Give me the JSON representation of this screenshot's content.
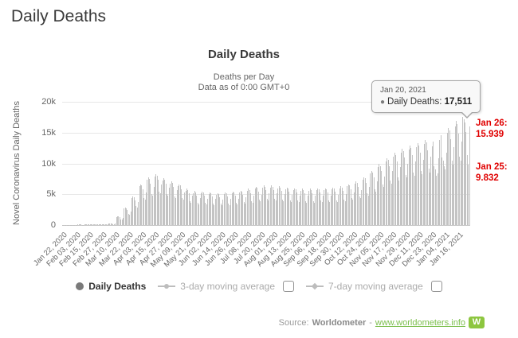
{
  "page": {
    "title": "Daily Deaths"
  },
  "chart": {
    "title": "Daily Deaths",
    "subtitle1": "Deaths per Day",
    "subtitle2": "Data as of 0:00 GMT+0",
    "y_axis_title": "Novel Coronavirus Daily Deaths"
  },
  "tooltip": {
    "date": "Jan 20, 2021",
    "dot": "●",
    "series_label": "Daily Deaths:",
    "value": "17,511"
  },
  "annotations": [
    {
      "label": "Jan 26:",
      "value": "15.939"
    },
    {
      "label": "Jan 25:",
      "value": "9.832"
    }
  ],
  "legend": {
    "items": [
      {
        "label": "Daily Deaths",
        "active": true
      },
      {
        "label": "3-day moving average",
        "active": false,
        "checkbox": true
      },
      {
        "label": "7-day moving average",
        "active": false,
        "checkbox": true
      }
    ]
  },
  "source": {
    "prefix": "Source:",
    "name": "Worldometer",
    "separator": "-",
    "link": "www.worldometers.info",
    "logo_letter": "W",
    "logo_color": "#8dc63f"
  },
  "chart_data": {
    "type": "bar",
    "title": "Daily Deaths",
    "xlabel": "",
    "ylabel": "Novel Coronavirus Daily Deaths",
    "ylim": [
      0,
      20000
    ],
    "grid": true,
    "bar_color": "#c3c3c3",
    "annotation_color": "#e00000",
    "x_start": "Jan 22, 2020",
    "x_end": "Jan 26, 2021",
    "y_ticks": [
      {
        "label": "0",
        "value": 0
      },
      {
        "label": "5k",
        "value": 5000
      },
      {
        "label": "10k",
        "value": 10000
      },
      {
        "label": "15k",
        "value": 15000
      },
      {
        "label": "20k",
        "value": 20000
      }
    ],
    "x_ticks": [
      {
        "label": "Jan 22, 2020",
        "day": 0
      },
      {
        "label": "Feb 03, 2020",
        "day": 12
      },
      {
        "label": "Feb 15, 2020",
        "day": 24
      },
      {
        "label": "Feb 27, 2020",
        "day": 36
      },
      {
        "label": "Mar 10, 2020",
        "day": 48
      },
      {
        "label": "Mar 22, 2020",
        "day": 60
      },
      {
        "label": "Apr 03, 2020",
        "day": 72
      },
      {
        "label": "Apr 15, 2020",
        "day": 84
      },
      {
        "label": "Apr 27, 2020",
        "day": 96
      },
      {
        "label": "May 09, 2020",
        "day": 108
      },
      {
        "label": "May 21, 2020",
        "day": 120
      },
      {
        "label": "Jun 02, 2020",
        "day": 132
      },
      {
        "label": "Jun 14, 2020",
        "day": 144
      },
      {
        "label": "Jun 26, 2020",
        "day": 156
      },
      {
        "label": "Jul 08, 2020",
        "day": 168
      },
      {
        "label": "Jul 20, 2020",
        "day": 180
      },
      {
        "label": "Aug 01, 2020",
        "day": 192
      },
      {
        "label": "Aug 13, 2020",
        "day": 204
      },
      {
        "label": "Aug 25, 2020",
        "day": 216
      },
      {
        "label": "Sep 06, 2020",
        "day": 228
      },
      {
        "label": "Sep 18, 2020",
        "day": 240
      },
      {
        "label": "Sep 30, 2020",
        "day": 252
      },
      {
        "label": "Oct 12, 2020",
        "day": 264
      },
      {
        "label": "Oct 24, 2020",
        "day": 276
      },
      {
        "label": "Nov 05, 2020",
        "day": 288
      },
      {
        "label": "Nov 17, 2020",
        "day": 300
      },
      {
        "label": "Nov 29, 2020",
        "day": 312
      },
      {
        "label": "Dec 11, 2020",
        "day": 324
      },
      {
        "label": "Dec 23, 2020",
        "day": 336
      },
      {
        "label": "Jan 04, 2021",
        "day": 348
      },
      {
        "label": "Jan 16, 2021",
        "day": 360
      }
    ],
    "highlight": {
      "date": "Jan 20, 2021",
      "value": 17511,
      "day": 364
    },
    "last_points": [
      {
        "date": "Jan 25, 2021",
        "value": 9832
      },
      {
        "date": "Jan 26, 2021",
        "value": 15939
      }
    ],
    "values": [
      19,
      20,
      19,
      18,
      13,
      12,
      16,
      57,
      60,
      58,
      53,
      40,
      37,
      48,
      90,
      95,
      92,
      84,
      63,
      59,
      76,
      114,
      120,
      116,
      106,
      79,
      74,
      96,
      105,
      110,
      107,
      97,
      73,
      68,
      88,
      124,
      130,
      126,
      114,
      86,
      81,
      104,
      266,
      280,
      272,
      246,
      185,
      174,
      224,
      1330,
      1400,
      1358,
      1232,
      924,
      868,
      1120,
      2660,
      2800,
      2716,
      2464,
      1848,
      1736,
      2240,
      4370,
      4600,
      4462,
      4048,
      3036,
      2852,
      3680,
      6270,
      6600,
      6402,
      5808,
      4356,
      4092,
      5280,
      7315,
      7700,
      7469,
      6776,
      5082,
      4774,
      6160,
      7885,
      8300,
      8051,
      7304,
      5478,
      5146,
      6640,
      7220,
      7600,
      7372,
      6688,
      5016,
      4712,
      6080,
      6745,
      7100,
      6887,
      6248,
      4686,
      4402,
      5680,
      6270,
      6600,
      6402,
      5808,
      4356,
      4092,
      5280,
      5605,
      5900,
      5723,
      5192,
      3894,
      3658,
      4720,
      5225,
      5500,
      5335,
      4840,
      3630,
      3410,
      4400,
      5130,
      5400,
      5238,
      4752,
      3564,
      3348,
      4320,
      5035,
      5300,
      5141,
      4664,
      3498,
      3286,
      4240,
      4940,
      5200,
      5044,
      4576,
      3432,
      3224,
      4160,
      5035,
      5300,
      5141,
      4664,
      3498,
      3286,
      4240,
      5130,
      5400,
      5238,
      4752,
      3564,
      3348,
      4320,
      5320,
      5600,
      5432,
      4928,
      3696,
      3472,
      4480,
      5605,
      5900,
      5723,
      5192,
      3894,
      3658,
      4720,
      5890,
      6200,
      6014,
      5456,
      4092,
      3844,
      4960,
      6080,
      6400,
      6208,
      5632,
      4224,
      3968,
      5120,
      6080,
      6400,
      6208,
      5632,
      4224,
      3968,
      5120,
      5985,
      6300,
      6111,
      5544,
      4158,
      3906,
      5040,
      5795,
      6100,
      5917,
      5368,
      4026,
      3782,
      4880,
      5700,
      6000,
      5820,
      5280,
      3960,
      3720,
      4800,
      5605,
      5900,
      5723,
      5192,
      3894,
      3658,
      4720,
      5605,
      5900,
      5723,
      5192,
      3894,
      3658,
      4720,
      5700,
      6000,
      5820,
      5280,
      3960,
      3720,
      4800,
      5700,
      6000,
      5820,
      5280,
      3960,
      3720,
      4800,
      5795,
      6100,
      5917,
      5368,
      4026,
      3782,
      4880,
      5985,
      6300,
      6111,
      5544,
      4158,
      3906,
      5040,
      6270,
      6600,
      6402,
      5808,
      4356,
      4092,
      5280,
      6745,
      7100,
      6887,
      6248,
      4686,
      4402,
      5680,
      7410,
      7800,
      7566,
      6864,
      5148,
      4836,
      6240,
      8360,
      8800,
      8536,
      7744,
      5808,
      5456,
      7040,
      9405,
      9900,
      9603,
      8712,
      6534,
      6138,
      7920,
      10355,
      10900,
      10573,
      9592,
      7194,
      6758,
      8720,
      11115,
      11700,
      11349,
      10296,
      7722,
      7254,
      9360,
      11780,
      12400,
      12028,
      10912,
      8184,
      7688,
      9920,
      12255,
      12900,
      12513,
      11352,
      8514,
      7998,
      10320,
      12635,
      13300,
      12901,
      11704,
      8778,
      8246,
      10640,
      13110,
      13800,
      13386,
      12144,
      9108,
      8556,
      11040,
      12825,
      13500,
      9500,
      9000,
      8000,
      8400,
      10800,
      13870,
      14600,
      11000,
      10500,
      9600,
      9000,
      11680,
      15010,
      15800,
      15326,
      13904,
      10428,
      9796,
      12640,
      16055,
      16900,
      16393,
      14872,
      11154,
      10478,
      13520,
      17511,
      17100,
      16600,
      15100,
      11300,
      9832,
      15939
    ]
  }
}
